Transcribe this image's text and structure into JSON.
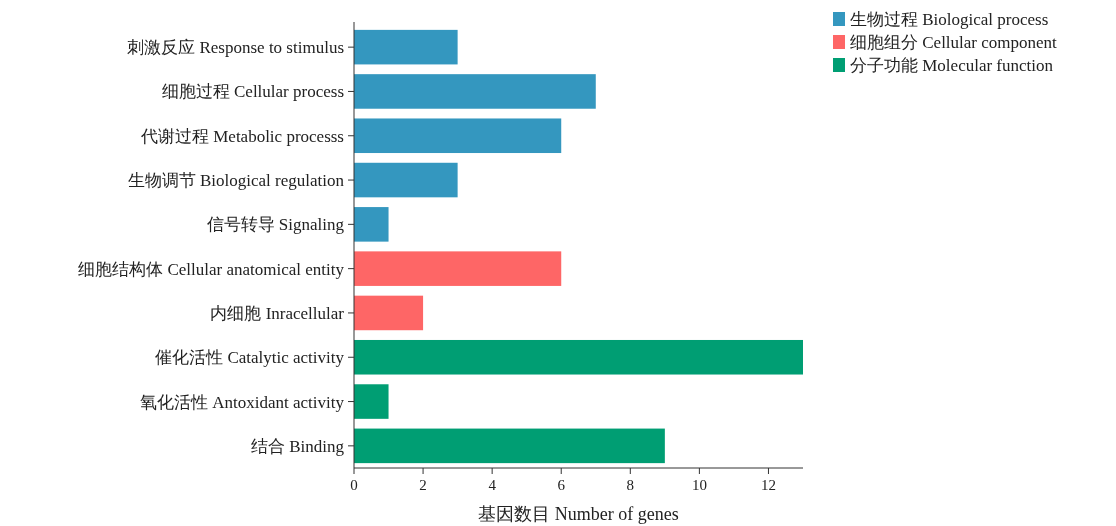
{
  "chart_data": {
    "type": "bar",
    "orientation": "horizontal",
    "xlabel": "基因数目 Number of genes",
    "categories": [
      "刺激反应 Response to stimulus",
      "细胞过程 Cellular process",
      "代谢过程 Metabolic processs",
      "生物调节 Biological regulation",
      "信号转导 Signaling",
      "细胞结构体 Cellular anatomical entity",
      "内细胞 Inracellular",
      "催化活性 Catalytic activity",
      "氧化活性 Antoxidant activity",
      "结合 Binding"
    ],
    "series": [
      {
        "name": "生物过程 Biological process",
        "color": "#3497bf",
        "values": [
          3,
          7,
          6,
          3,
          1,
          null,
          null,
          null,
          null,
          null
        ]
      },
      {
        "name": "细胞组分 Cellular component",
        "color": "#fe6666",
        "values": [
          null,
          null,
          null,
          null,
          null,
          6,
          2,
          null,
          null,
          null
        ]
      },
      {
        "name": "分子功能 Molecular function",
        "color": "#009e73",
        "values": [
          null,
          null,
          null,
          null,
          null,
          null,
          null,
          13,
          1,
          9
        ]
      }
    ],
    "xlim": [
      0,
      13
    ],
    "xticks": [
      0,
      2,
      4,
      6,
      8,
      10,
      12
    ],
    "grid": false,
    "legend": "top right"
  }
}
